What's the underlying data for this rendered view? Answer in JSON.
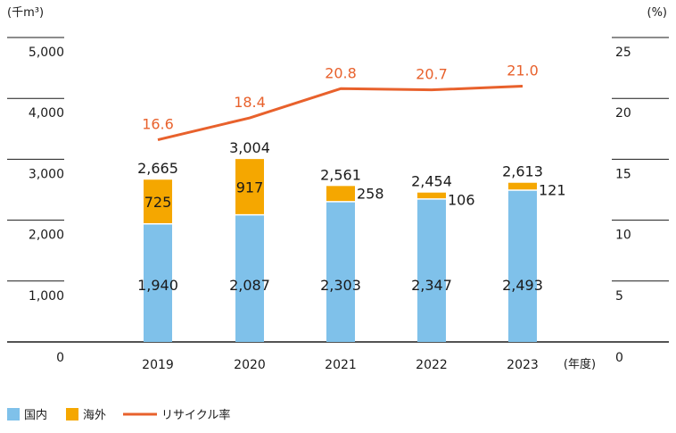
{
  "chart_data": {
    "type": "bar",
    "stacked": true,
    "categories": [
      "2019",
      "2020",
      "2021",
      "2022",
      "2023"
    ],
    "series": [
      {
        "name": "国内",
        "type": "bar",
        "axis": "left",
        "color": "#7fc1ea",
        "values": [
          1940,
          2087,
          2303,
          2347,
          2493
        ]
      },
      {
        "name": "海外",
        "type": "bar",
        "axis": "left",
        "color": "#f5a700",
        "values": [
          725,
          917,
          258,
          106,
          121
        ]
      },
      {
        "name": "リサイクル率",
        "type": "line",
        "axis": "right",
        "color": "#e8612c",
        "values": [
          16.6,
          18.4,
          20.8,
          20.7,
          21.0
        ]
      }
    ],
    "totals": [
      2665,
      3004,
      2561,
      2454,
      2613
    ],
    "domestic_labels": [
      "1,940",
      "2,087",
      "2,303",
      "2,347",
      "2,493"
    ],
    "overseas_labels": [
      "725",
      "917",
      "258",
      "106",
      "121"
    ],
    "total_labels": [
      "2,665",
      "3,004",
      "2,561",
      "2,454",
      "2,613"
    ],
    "rate_labels": [
      "16.6",
      "18.4",
      "20.8",
      "20.7",
      "21.0"
    ],
    "left_axis": {
      "unit": "(千m³)",
      "ylim": [
        0,
        5000
      ],
      "ticks": [
        0,
        1000,
        2000,
        3000,
        4000,
        5000
      ],
      "tick_labels": [
        "0",
        "1,000",
        "2,000",
        "3,000",
        "4,000",
        "5,000"
      ]
    },
    "right_axis": {
      "unit": "(%)",
      "ylim": [
        0,
        25
      ],
      "ticks": [
        0,
        5,
        10,
        15,
        20,
        25
      ],
      "tick_labels": [
        "0",
        "5",
        "10",
        "15",
        "20",
        "25"
      ]
    },
    "x_axis": {
      "unit": "(年度)"
    },
    "grid": true,
    "legend": {
      "position": "bottom-left",
      "items": [
        "国内",
        "海外",
        "リサイクル率"
      ]
    }
  }
}
